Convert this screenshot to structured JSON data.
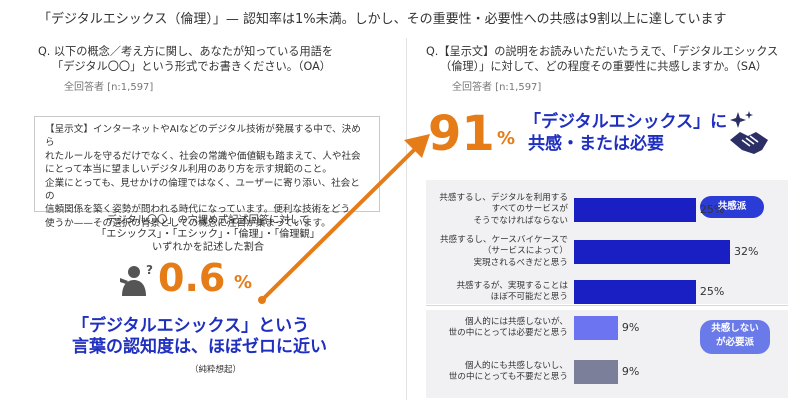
{
  "headline": "「デジタルエシックス（倫理）」— 認知率は1%未満。しかし、その重要性・必要性への共感は9割以上に達しています",
  "left": {
    "question_line1": "Q. 以下の概念／考え方に関し、あなたが知っている用語を",
    "question_line2": "「デジタル〇〇」という形式でお書きください。（OA）",
    "respondents": "全回答者 [n:1,597]",
    "card_lines": [
      "【呈示文】インターネットやAIなどのデジタル技術が発展する中で、決めら",
      "れたルールを守るだけでなく、社会の常識や価値観も踏まえて、人や社会",
      "にとって本当に望ましいデジタル利用のあり方を示す規範のこと。",
      "企業にとっても、見せかけの倫理ではなく、ユーザーに寄り添い、社会との",
      "信頼関係を築く姿勢が問われる時代になっています。便利な技術をどう",
      "使うか——その選択の背景としての概念に注目が集まっています。"
    ],
    "mid_lines": [
      "デジタル〇〇」の穴埋め式記述回答に対して",
      "「エシックス」・「エシック」・「倫理」・「倫理観」",
      "いずれかを記述した割合"
    ],
    "big_value": "0.6",
    "pct": "%",
    "headline_lines": [
      "「デジタルエシックス」という",
      "言葉の認知度は、ほぼゼロに近い"
    ],
    "note": "（純粋想起）"
  },
  "right": {
    "question_line1": "Q.【呈示文】の説明をお読みいただいたうえで、「デジタルエシックス",
    "question_line2": "（倫理）」に対して、どの程度その重要性に共感しますか。（SA）",
    "respondents": "全回答者 [n:1,597]",
    "big_value": "91",
    "pct": "%",
    "headline_lines": [
      "「デジタルエシックス」に",
      "共感・または必要"
    ],
    "tag_empathy": "共感派",
    "tag_nonempathy_lines": [
      "共感しない",
      "が必要派"
    ]
  },
  "chart_data": {
    "type": "bar",
    "orientation": "horizontal",
    "categories": [
      [
        "共感するし、デジタルを利用する",
        "すべてのサービスが",
        "そうでなければならない"
      ],
      [
        "共感するし、ケースバイケースで",
        "（サービスによって）",
        "実現されるべきだと思う"
      ],
      [
        "共感するが、実現することは",
        "ほぼ不可能だと思う"
      ],
      [
        "個人的には共感しないが、",
        "世の中にとっては必要だと思う"
      ],
      [
        "個人的にも共感しないし、",
        "世の中にとっても不要だと思う"
      ]
    ],
    "values": [
      25,
      32,
      25,
      9,
      9
    ],
    "labels": [
      "25%",
      "32%",
      "25%",
      "9%",
      "9%"
    ],
    "unit": "%",
    "xlim": [
      0,
      32
    ],
    "colors": [
      "#1a1fc4",
      "#1a1fc4",
      "#1a1fc4",
      "#6c74f2",
      "#7b7f9a"
    ]
  },
  "colors": {
    "orange": "#e57c17",
    "blue": "#1f2fbf",
    "bar_blue": "#1a1fc4",
    "tag_blue": "#2b3bd6",
    "tag_light": "#6a7ae8",
    "group_bg": "#f1f1f3"
  }
}
